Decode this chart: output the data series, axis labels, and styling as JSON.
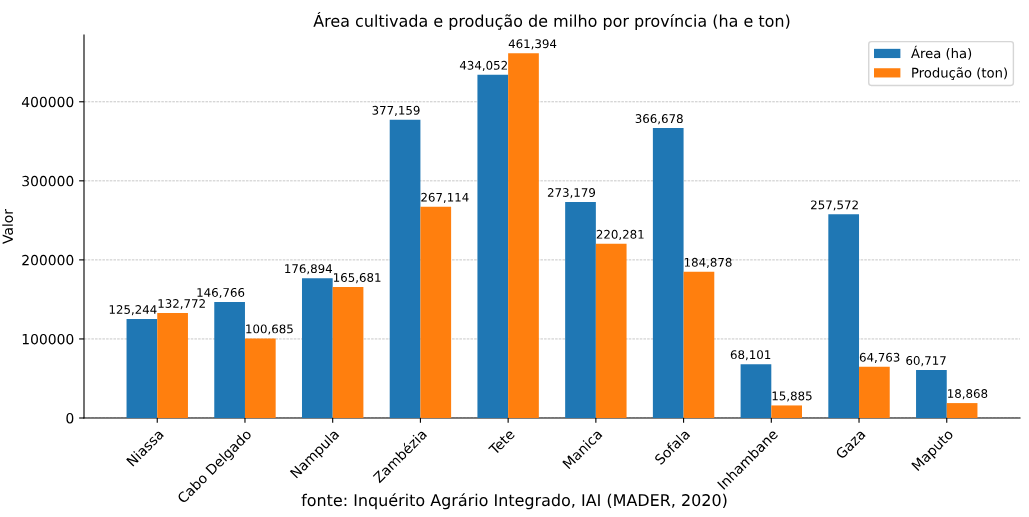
{
  "chart_data": {
    "type": "bar",
    "title": "Área cultivada e produção de milho por província (ha e ton)",
    "ylabel": "Valor",
    "categories": [
      "Niassa",
      "Cabo Delgado",
      "Nampula",
      "Zambézia",
      "Tete",
      "Manica",
      "Sofala",
      "Inhambane",
      "Gaza",
      "Maputo"
    ],
    "series": [
      {
        "name": "Área (ha)",
        "color": "#1f77b4",
        "values": [
          125244,
          146766,
          176894,
          377159,
          434052,
          273179,
          366678,
          68101,
          257572,
          60717
        ],
        "value_labels": [
          "125,244",
          "146,766",
          "176,894",
          "377,159",
          "434,052",
          "273,179",
          "366,678",
          "68,101",
          "257,572",
          "60,717"
        ]
      },
      {
        "name": "Produção (ton)",
        "color": "#ff7f0e",
        "values": [
          132772,
          100685,
          165681,
          267114,
          461394,
          220281,
          184878,
          15885,
          64763,
          18868
        ],
        "value_labels": [
          "132,772",
          "100,685",
          "165,681",
          "267,114",
          "461,394",
          "220,281",
          "184,878",
          "15,885",
          "64,763",
          "18,868"
        ]
      }
    ],
    "ylim": [
      0,
      484464
    ],
    "yticks": [
      0,
      100000,
      200000,
      300000,
      400000
    ],
    "grid": "y",
    "legend": "top right",
    "annotations": [
      "fonte: Inquérito Agrário Integrado, IAI (MADER, 2020)"
    ]
  }
}
